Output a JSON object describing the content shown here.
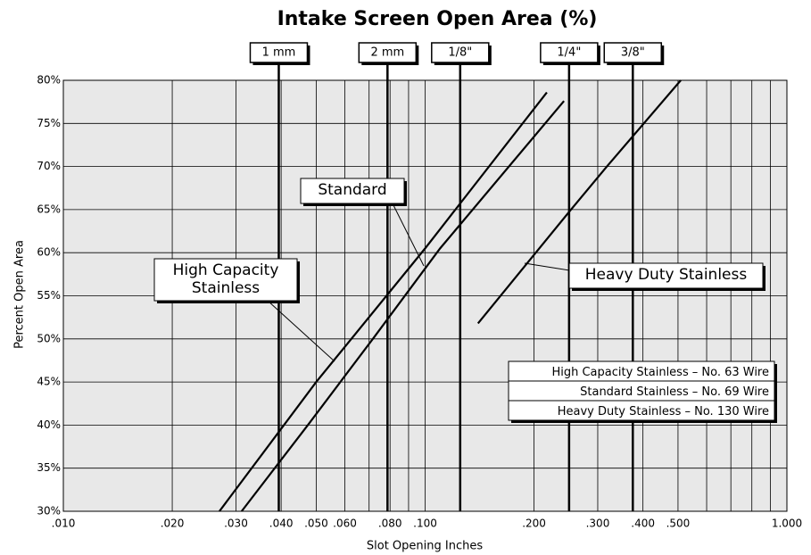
{
  "chart_data": {
    "type": "line",
    "title": "Intake Screen Open Area (%)",
    "xlabel": "Slot Opening Inches",
    "ylabel": "Percent Open Area",
    "xlog": true,
    "xlim": [
      0.01,
      1.0
    ],
    "ylim": [
      30,
      80
    ],
    "xticks": [
      {
        "value": 0.01,
        "label": ".010"
      },
      {
        "value": 0.02,
        "label": ".020"
      },
      {
        "value": 0.03,
        "label": ".030"
      },
      {
        "value": 0.04,
        "label": ".040"
      },
      {
        "value": 0.05,
        "label": ".050"
      },
      {
        "value": 0.06,
        "label": ".060"
      },
      {
        "value": 0.08,
        "label": ".080"
      },
      {
        "value": 0.1,
        "label": ".100"
      },
      {
        "value": 0.2,
        "label": ".200"
      },
      {
        "value": 0.3,
        "label": ".300"
      },
      {
        "value": 0.4,
        "label": ".400"
      },
      {
        "value": 0.5,
        "label": ".500"
      },
      {
        "value": 1.0,
        "label": "1.000"
      }
    ],
    "yticks": [
      {
        "value": 30,
        "label": "30%"
      },
      {
        "value": 35,
        "label": "35%"
      },
      {
        "value": 40,
        "label": "40%"
      },
      {
        "value": 45,
        "label": "45%"
      },
      {
        "value": 50,
        "label": "50%"
      },
      {
        "value": 55,
        "label": "55%"
      },
      {
        "value": 60,
        "label": "60%"
      },
      {
        "value": 65,
        "label": "65%"
      },
      {
        "value": 70,
        "label": "70%"
      },
      {
        "value": 75,
        "label": "75%"
      },
      {
        "value": 80,
        "label": "80%"
      }
    ],
    "x_gridlines": [
      0.01,
      0.02,
      0.03,
      0.04,
      0.05,
      0.06,
      0.07,
      0.08,
      0.09,
      0.1,
      0.2,
      0.3,
      0.4,
      0.5,
      0.6,
      0.7,
      0.8,
      0.9,
      1.0
    ],
    "grid": true,
    "markers": [
      {
        "label": "1 mm",
        "value": 0.0394
      },
      {
        "label": "2 mm",
        "value": 0.0787
      },
      {
        "label": "1/8\"",
        "value": 0.125
      },
      {
        "label": "1/4\"",
        "value": 0.25
      },
      {
        "label": "3/8\"",
        "value": 0.375
      }
    ],
    "series": [
      {
        "name": "High Capacity Stainless",
        "wire": "– No. 63 Wire",
        "color": "#000000",
        "x": [
          0.027,
          0.05,
          0.1,
          0.217
        ],
        "values": [
          30,
          45,
          60.5,
          78.6
        ]
      },
      {
        "name": "Standard Stainless",
        "wire": "– No. 69 Wire",
        "color": "#000000",
        "x": [
          0.0311,
          0.0474,
          0.0717,
          0.11,
          0.242
        ],
        "values": [
          30,
          40,
          50,
          60.5,
          77.6
        ]
      },
      {
        "name": "Heavy Duty Stainless",
        "wire": "– No. 130 Wire",
        "color": "#000000",
        "x": [
          0.14,
          0.253,
          0.318,
          0.509
        ],
        "values": [
          51.8,
          65,
          70,
          80
        ]
      }
    ],
    "annotations": [
      {
        "lines": [
          "High Capacity",
          "Stainless"
        ]
      },
      {
        "lines": [
          "Standard"
        ]
      },
      {
        "lines": [
          "Heavy Duty Stainless"
        ]
      }
    ]
  }
}
